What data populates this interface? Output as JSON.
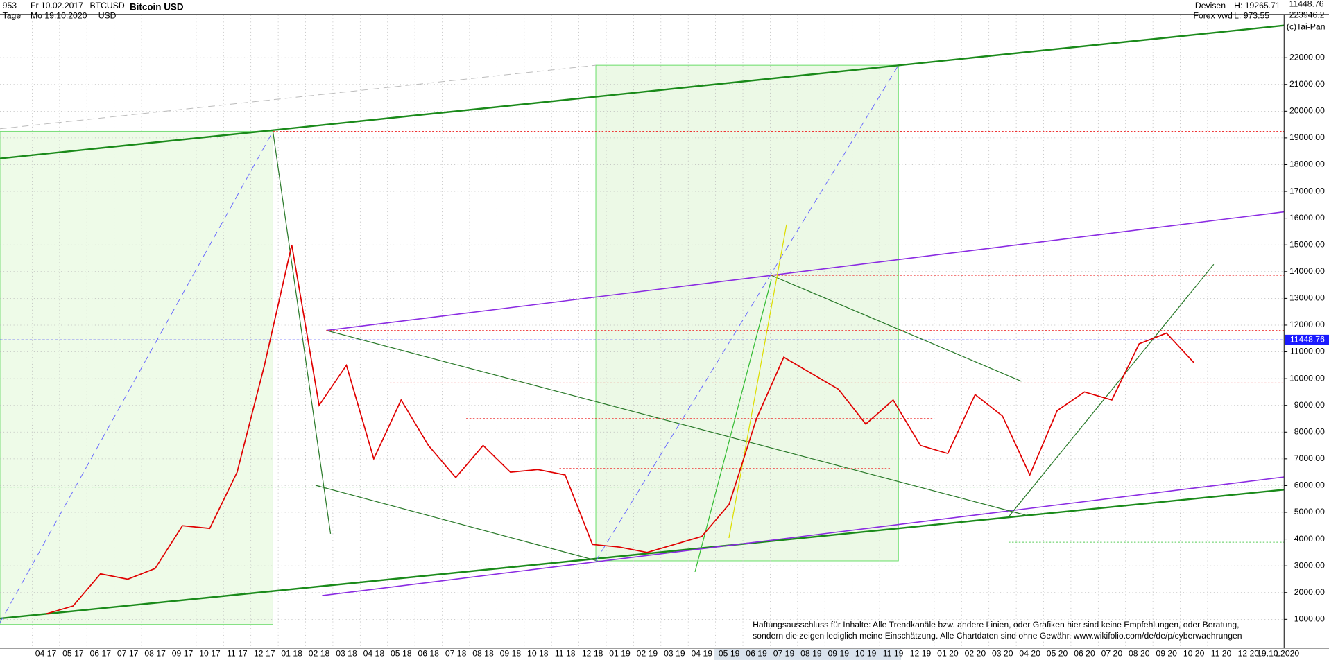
{
  "header": {
    "count": "953",
    "range_unit": "Tage",
    "from": "Fr 10.02.2017",
    "to": "Mo 19.10.2020",
    "symbol": "BTCUSD",
    "currency": "USD",
    "name": "Bitcoin USD",
    "market": "Devisen",
    "source": "Forex vwd",
    "high": "H: 19265.71",
    "low": "L: 973.55",
    "last": "11448.76",
    "volume": "223946.2",
    "copyright": "(c)Tai-Pan"
  },
  "disclaimer": [
    "Haftungsausschluss für Inhalte: Alle Trendkanäle bzw. andere Linien, oder Grafiken hier sind keine Empfehlungen, oder Beratung,",
    "sondern die zeigen lediglich meine  Einschätzung. Alle Chartdaten sind ohne Gewähr.  www.wikifolio.com/de/de/p/cyberwaehrungen"
  ],
  "footer": {
    "end_date": "19.10.2020",
    "scale": "L"
  },
  "chart_data": {
    "type": "line",
    "title": "Bitcoin USD",
    "categories": [
      "04 17",
      "05 17",
      "06 17",
      "07 17",
      "08 17",
      "09 17",
      "10 17",
      "11 17",
      "12 17",
      "01 18",
      "02 18",
      "03 18",
      "04 18",
      "05 18",
      "06 18",
      "07 18",
      "08 18",
      "09 18",
      "10 18",
      "11 18",
      "12 18",
      "01 19",
      "02 19",
      "03 19",
      "04 19",
      "05 19",
      "06 19",
      "07 19",
      "08 19",
      "09 19",
      "10 19",
      "11 19",
      "12 19",
      "01 20",
      "02 20",
      "03 20",
      "04 20",
      "05 20",
      "06 20",
      "07 20",
      "08 20",
      "09 20",
      "10 20",
      "11 20",
      "12 20"
    ],
    "series": [
      {
        "name": "BTCUSD",
        "color": "#e00000",
        "values": [
          1200,
          1500,
          2700,
          2500,
          2900,
          4500,
          4400,
          6500,
          10500,
          15000,
          9000,
          10500,
          7000,
          9200,
          7500,
          6300,
          7500,
          6500,
          6600,
          6400,
          3800,
          3700,
          3500,
          3800,
          4100,
          5300,
          8500,
          10800,
          10200,
          9600,
          8300,
          9200,
          7500,
          7200,
          9400,
          8600,
          6400,
          8800,
          9500,
          9200,
          11300,
          11700,
          10600,
          null,
          null
        ]
      }
    ],
    "current": 11448.76,
    "current_color": "#1a1aff",
    "ylim": [
      0,
      23600
    ],
    "yticks": [
      {
        "value": 1000,
        "label": "1000.00"
      },
      {
        "value": 2000,
        "label": "2000.00"
      },
      {
        "value": 3000,
        "label": "3000.00"
      },
      {
        "value": 4000,
        "label": "4000.00"
      },
      {
        "value": 5000,
        "label": "5000.00"
      },
      {
        "value": 6000,
        "label": "6000.00"
      },
      {
        "value": 7000,
        "label": "7000.00"
      },
      {
        "value": 8000,
        "label": "8000.00"
      },
      {
        "value": 9000,
        "label": "9000.00"
      },
      {
        "value": 10000,
        "label": "10000.00"
      },
      {
        "value": 11000,
        "label": "11000.00"
      },
      {
        "value": 12000,
        "label": "12000.00"
      },
      {
        "value": 13000,
        "label": "13000.00"
      },
      {
        "value": 14000,
        "label": "14000.00"
      },
      {
        "value": 15000,
        "label": "15000.00"
      },
      {
        "value": 16000,
        "label": "16000.00"
      },
      {
        "value": 17000,
        "label": "17000.00"
      },
      {
        "value": 18000,
        "label": "18000.00"
      },
      {
        "value": 19000,
        "label": "19000.00"
      },
      {
        "value": 20000,
        "label": "20000.00"
      },
      {
        "value": 21000,
        "label": "21000.00"
      },
      {
        "value": 22000,
        "label": "22000.00"
      }
    ],
    "grid": true
  }
}
